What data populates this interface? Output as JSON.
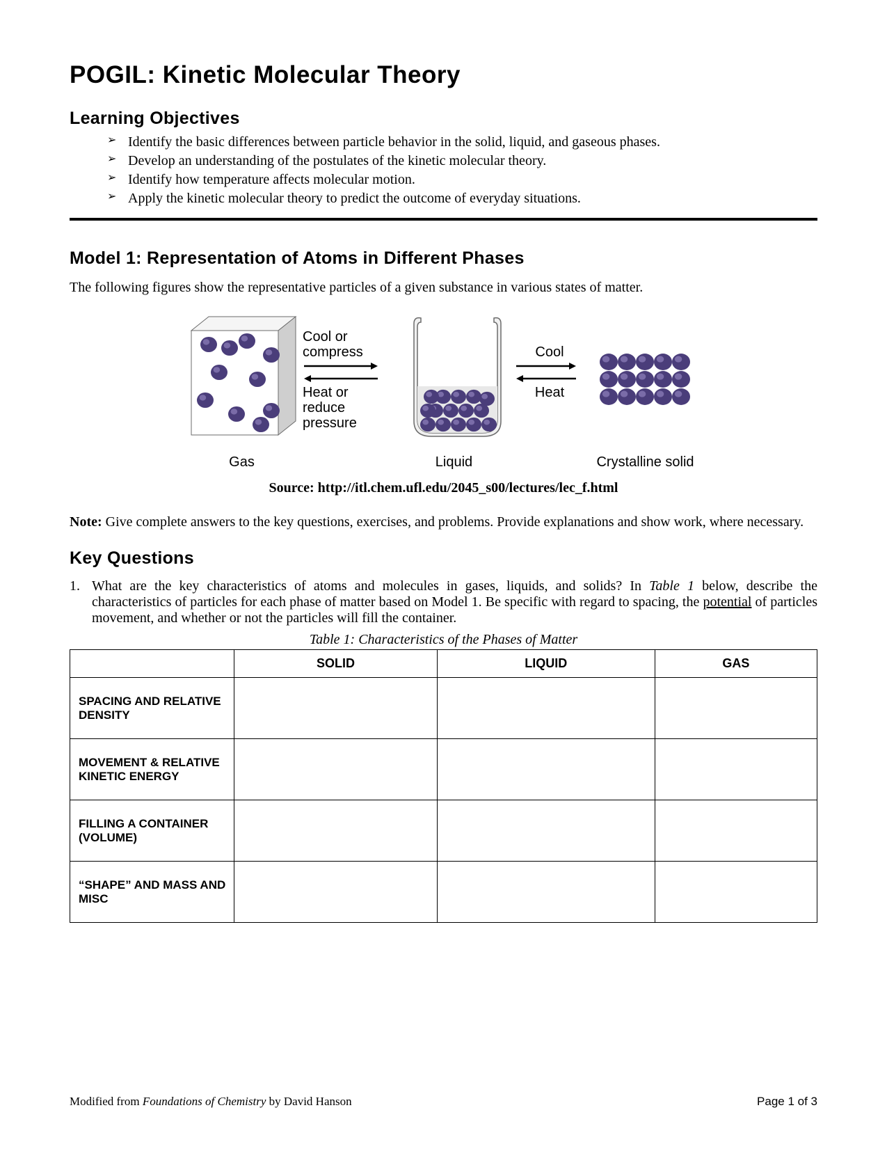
{
  "title": "POGIL: Kinetic Molecular Theory",
  "learning_objectives_heading": "Learning Objectives",
  "objectives": [
    "Identify the basic differences between particle behavior in the solid, liquid, and gaseous phases.",
    "Develop an understanding of the postulates of the kinetic molecular theory.",
    "Identify how temperature affects molecular motion.",
    "Apply the kinetic molecular theory to predict the outcome of everyday situations."
  ],
  "model1_heading": "Model 1: Representation of Atoms in Different Phases",
  "model1_intro": "The following figures show the representative particles of a given substance in various states of matter.",
  "diagram": {
    "phase_labels": [
      "Gas",
      "Liquid",
      "Crystalline solid"
    ],
    "transition1": {
      "top": "Cool or\ncompress",
      "bottom": "Heat or\nreduce\npressure"
    },
    "transition2": {
      "top": "Cool",
      "bottom": "Heat"
    },
    "particle_color": "#4a3d7a",
    "particle_highlight": "#7a6ca8",
    "container_outline": "#6b6b6b",
    "container_fill": "#f0f0f0",
    "box_face_light": "#f5f5f5",
    "box_face_shadow": "#cfcfcf",
    "arrow_color": "#000000",
    "background": "#ffffff"
  },
  "source_line": "Source: http://itl.chem.ufl.edu/2045_s00/lectures/lec_f.html",
  "note_prefix": "Note:",
  "note_text": " Give complete answers to the key questions, exercises, and problems.  Provide explanations and show work, where necessary.",
  "key_questions_heading": "Key Questions",
  "question1_number": "1.",
  "question1_pre": "What are the key characteristics of atoms and molecules in gases, liquids, and solids? In ",
  "question1_table_ref": "Table 1",
  "question1_mid": " below, describe the characteristics of particles for each phase of matter based on Model 1.  Be specific with regard to spacing, the ",
  "question1_underline": "potential",
  "question1_post": " of particles movement, and whether or not the particles will fill the container.",
  "table_caption": "Table 1: Characteristics of the Phases of Matter",
  "table": {
    "columns": [
      "",
      "SOLID",
      "LIQUID",
      "GAS"
    ],
    "rows": [
      "SPACING AND RELATIVE DENSITY",
      "MOVEMENT & RELATIVE KINETIC ENERGY",
      "FILLING A CONTAINER (VOLUME)",
      "“SHAPE” AND MASS AND MISC"
    ]
  },
  "footer_left_pre": "Modified from ",
  "footer_left_italic": "Foundations of Chemistry",
  "footer_left_post": " by David Hanson",
  "footer_right": "Page 1 of 3"
}
